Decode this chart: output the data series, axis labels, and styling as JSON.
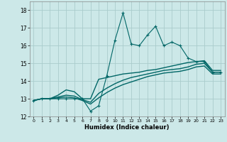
{
  "xlabel": "Humidex (Indice chaleur)",
  "background_color": "#cce8e8",
  "grid_color": "#aacccc",
  "line_color": "#006666",
  "xlim": [
    -0.5,
    23.5
  ],
  "ylim": [
    12,
    18.5
  ],
  "xticks": [
    0,
    1,
    2,
    3,
    4,
    5,
    6,
    7,
    8,
    9,
    10,
    11,
    12,
    13,
    14,
    15,
    16,
    17,
    18,
    19,
    20,
    21,
    22,
    23
  ],
  "yticks": [
    12,
    13,
    14,
    15,
    16,
    17,
    18
  ],
  "series": [
    {
      "x": [
        0,
        1,
        2,
        3,
        4,
        5,
        6,
        7,
        8,
        9,
        10,
        11,
        12,
        13,
        14,
        15,
        16,
        17,
        18,
        19,
        20,
        21,
        22,
        23
      ],
      "y": [
        12.9,
        13.0,
        13.0,
        13.0,
        13.0,
        13.0,
        13.0,
        12.3,
        12.6,
        14.3,
        16.3,
        17.85,
        16.1,
        16.0,
        16.6,
        17.1,
        16.0,
        16.2,
        16.0,
        15.3,
        15.1,
        15.1,
        14.5,
        14.5
      ],
      "marker": true,
      "linewidth": 0.8
    },
    {
      "x": [
        0,
        1,
        2,
        3,
        4,
        5,
        6,
        7,
        8,
        9,
        10,
        11,
        12,
        13,
        14,
        15,
        16,
        17,
        18,
        19,
        20,
        21,
        22,
        23
      ],
      "y": [
        12.9,
        13.0,
        13.0,
        13.2,
        13.5,
        13.4,
        13.0,
        13.0,
        14.1,
        14.2,
        14.3,
        14.4,
        14.45,
        14.5,
        14.6,
        14.65,
        14.75,
        14.85,
        14.95,
        15.05,
        15.1,
        15.15,
        14.6,
        14.6
      ],
      "marker": false,
      "linewidth": 1.0
    },
    {
      "x": [
        0,
        1,
        2,
        3,
        4,
        5,
        6,
        7,
        8,
        9,
        10,
        11,
        12,
        13,
        14,
        15,
        16,
        17,
        18,
        19,
        20,
        21,
        22,
        23
      ],
      "y": [
        12.9,
        13.0,
        13.0,
        13.1,
        13.2,
        13.15,
        12.95,
        12.8,
        13.3,
        13.6,
        13.85,
        14.05,
        14.2,
        14.3,
        14.4,
        14.5,
        14.6,
        14.65,
        14.7,
        14.8,
        14.95,
        15.0,
        14.5,
        14.5
      ],
      "marker": false,
      "linewidth": 1.0
    },
    {
      "x": [
        0,
        1,
        2,
        3,
        4,
        5,
        6,
        7,
        8,
        9,
        10,
        11,
        12,
        13,
        14,
        15,
        16,
        17,
        18,
        19,
        20,
        21,
        22,
        23
      ],
      "y": [
        12.9,
        13.0,
        13.0,
        13.05,
        13.1,
        13.05,
        12.9,
        12.7,
        13.05,
        13.35,
        13.6,
        13.8,
        13.95,
        14.1,
        14.25,
        14.35,
        14.45,
        14.5,
        14.55,
        14.65,
        14.8,
        14.85,
        14.4,
        14.4
      ],
      "marker": false,
      "linewidth": 1.0
    }
  ]
}
